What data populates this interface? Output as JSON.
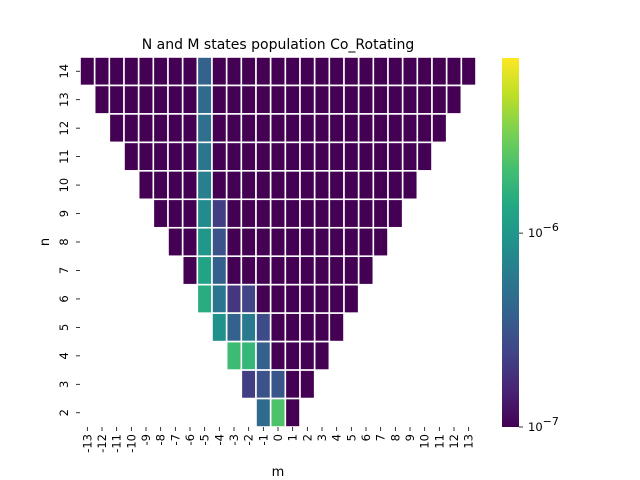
{
  "chart_data": {
    "type": "heatmap",
    "title": "N and M states population Co_Rotating",
    "xlabel": "m",
    "ylabel": "n",
    "x_ticks": [
      "-13",
      "-12",
      "-11",
      "-10",
      "-9",
      "-8",
      "-7",
      "-6",
      "-5",
      "-4",
      "-3",
      "-2",
      "-1",
      "0",
      "1",
      "2",
      "3",
      "4",
      "5",
      "6",
      "7",
      "8",
      "9",
      "10",
      "11",
      "12",
      "13"
    ],
    "y_ticks": [
      "14",
      "13",
      "12",
      "11",
      "10",
      "9",
      "8",
      "7",
      "6",
      "5",
      "4",
      "3",
      "2"
    ],
    "m_range": [
      -13,
      13
    ],
    "n_range": [
      2,
      14
    ],
    "value_rule": "populated cells satisfy |m| <= n - 1; blank cells elsewhere",
    "colorbar": {
      "scale": "log",
      "colormap": "viridis",
      "range": [
        1e-07,
        8e-06
      ],
      "tick_labels": [
        {
          "base": "10",
          "exp": "−6",
          "value": 1e-06
        },
        {
          "base": "10",
          "exp": "−7",
          "value": 1e-07
        }
      ]
    },
    "values": [
      {
        "n": 14,
        "m": -5,
        "v": 4e-07
      },
      {
        "n": 13,
        "m": -5,
        "v": 4.5e-07
      },
      {
        "n": 12,
        "m": -5,
        "v": 5e-07
      },
      {
        "n": 11,
        "m": -5,
        "v": 5.5e-07
      },
      {
        "n": 10,
        "m": -5,
        "v": 6.5e-07
      },
      {
        "n": 9,
        "m": -5,
        "v": 8e-07
      },
      {
        "n": 9,
        "m": -4,
        "v": 2.2e-07
      },
      {
        "n": 8,
        "m": -5,
        "v": 1e-06
      },
      {
        "n": 8,
        "m": -4,
        "v": 3e-07
      },
      {
        "n": 7,
        "m": -5,
        "v": 1.25e-06
      },
      {
        "n": 7,
        "m": -4,
        "v": 3.8e-07
      },
      {
        "n": 6,
        "m": -5,
        "v": 1.5e-06
      },
      {
        "n": 6,
        "m": -4,
        "v": 5.5e-07
      },
      {
        "n": 6,
        "m": -3,
        "v": 2e-07
      },
      {
        "n": 6,
        "m": -2,
        "v": 2.4e-07
      },
      {
        "n": 5,
        "m": -4,
        "v": 9e-07
      },
      {
        "n": 5,
        "m": -3,
        "v": 4e-07
      },
      {
        "n": 5,
        "m": -2,
        "v": 6e-07
      },
      {
        "n": 5,
        "m": -1,
        "v": 2.7e-07
      },
      {
        "n": 4,
        "m": -3,
        "v": 2e-06
      },
      {
        "n": 4,
        "m": -2,
        "v": 1.8e-06
      },
      {
        "n": 4,
        "m": -1,
        "v": 3.8e-07
      },
      {
        "n": 3,
        "m": -2,
        "v": 2.2e-07
      },
      {
        "n": 3,
        "m": -1,
        "v": 3e-07
      },
      {
        "n": 3,
        "m": 0,
        "v": 3.2e-07
      },
      {
        "n": 2,
        "m": -1,
        "v": 4.5e-07
      },
      {
        "n": 2,
        "m": 0,
        "v": 2.3e-06
      }
    ],
    "default_populated_value": 1e-07,
    "grid": false,
    "legend": "colorbar-right"
  }
}
